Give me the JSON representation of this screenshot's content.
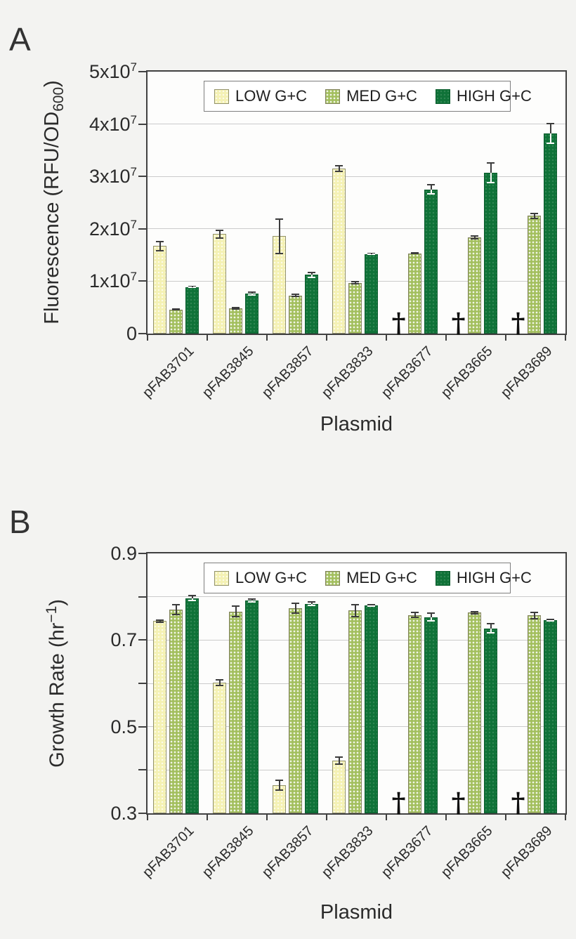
{
  "panels": [
    {
      "panel_label": "A"
    },
    {
      "panel_label": "B"
    }
  ],
  "legend": {
    "items": [
      {
        "key": "low",
        "label": "LOW G+C"
      },
      {
        "key": "med",
        "label": "MED G+C"
      },
      {
        "key": "high",
        "label": "HIGH G+C"
      }
    ]
  },
  "colors": {
    "low_fill": "#f4f1b4",
    "low_border": "#92926e",
    "med_fill": "#a3bf5e",
    "med_border": "#82825f",
    "high_fill": "#0f7238",
    "high_border": "#0b5c2d",
    "error_bar": "#3c3c3c",
    "error_bar_on_dark": "#ffffff",
    "axis": "#414141",
    "gridline": "#cbcbcb",
    "background": "#f3f3f1",
    "plot_background": "#fdfdfc",
    "text": "#2b2b2b"
  },
  "chart_data": [
    {
      "type": "bar",
      "panel": "A",
      "ylabel": "Fluorescence (RFU/OD600)",
      "ylabel_parts": [
        {
          "t": "Fluorescence (RFU/OD"
        },
        {
          "t": "600",
          "sub": true
        },
        {
          "t": ")"
        }
      ],
      "xlabel": "Plasmid",
      "ylim": [
        0,
        50000000
      ],
      "grid": "horizontal",
      "legend_position": "top-inside",
      "missing_symbol": "†",
      "categories": [
        "pFAB3701",
        "pFAB3845",
        "pFAB3857",
        "pFAB3833",
        "pFAB3677",
        "pFAB3665",
        "pFAB3689"
      ],
      "series": [
        {
          "name": "LOW G+C",
          "key": "low",
          "values": [
            16700000,
            19000000,
            18600000,
            31500000,
            null,
            null,
            null
          ],
          "errors": [
            1000000,
            900000,
            3400000,
            700000,
            null,
            null,
            null
          ]
        },
        {
          "name": "MED G+C",
          "key": "med",
          "values": [
            4600000,
            4800000,
            7300000,
            9700000,
            15300000,
            18400000,
            22500000
          ],
          "errors": [
            200000,
            300000,
            300000,
            300000,
            200000,
            400000,
            600000
          ]
        },
        {
          "name": "HIGH G+C",
          "key": "high",
          "values": [
            8900000,
            7700000,
            11200000,
            15200000,
            27500000,
            30700000,
            38200000
          ],
          "errors": [
            200000,
            400000,
            600000,
            200000,
            1000000,
            2000000,
            2000000
          ]
        }
      ],
      "yticks": [
        {
          "v": 0,
          "label": "0"
        },
        {
          "v": 10000000,
          "label": "1x10",
          "sup": "7"
        },
        {
          "v": 20000000,
          "label": "2x10",
          "sup": "7"
        },
        {
          "v": 30000000,
          "label": "3x10",
          "sup": "7"
        },
        {
          "v": 40000000,
          "label": "4x10",
          "sup": "7"
        },
        {
          "v": 50000000,
          "label": "5x10",
          "sup": "7"
        }
      ],
      "gridlines": [
        10000000,
        20000000,
        30000000,
        40000000
      ]
    },
    {
      "type": "bar",
      "panel": "B",
      "ylabel": "Growth Rate (hr-1)",
      "ylabel_parts": [
        {
          "t": "Growth Rate (hr"
        },
        {
          "t": "−1",
          "sup": true
        },
        {
          "t": ")"
        }
      ],
      "xlabel": "Plasmid",
      "ylim": [
        0.3,
        0.9
      ],
      "grid": "horizontal",
      "legend_position": "top-inside",
      "missing_symbol": "†",
      "categories": [
        "pFAB3701",
        "pFAB3845",
        "pFAB3857",
        "pFAB3833",
        "pFAB3677",
        "pFAB3665",
        "pFAB3689"
      ],
      "series": [
        {
          "name": "LOW G+C",
          "key": "low",
          "values": [
            0.744,
            0.601,
            0.365,
            0.422,
            null,
            null,
            null
          ],
          "errors": [
            0.004,
            0.008,
            0.013,
            0.01,
            null,
            null,
            null
          ]
        },
        {
          "name": "MED G+C",
          "key": "med",
          "values": [
            0.771,
            0.766,
            0.773,
            0.768,
            0.758,
            0.763,
            0.757
          ],
          "errors": [
            0.013,
            0.014,
            0.013,
            0.016,
            0.007,
            0.004,
            0.009
          ]
        },
        {
          "name": "HIGH G+C",
          "key": "high",
          "values": [
            0.797,
            0.791,
            0.784,
            0.78,
            0.753,
            0.727,
            0.746
          ],
          "errors": [
            0.008,
            0.005,
            0.005,
            0.004,
            0.011,
            0.012,
            0.004
          ]
        }
      ],
      "yticks": [
        {
          "v": 0.3,
          "label": "0.3"
        },
        {
          "v": 0.4
        },
        {
          "v": 0.5,
          "label": "0.5"
        },
        {
          "v": 0.6
        },
        {
          "v": 0.7,
          "label": "0.7"
        },
        {
          "v": 0.8
        },
        {
          "v": 0.9,
          "label": "0.9"
        }
      ],
      "gridlines": [
        0.4,
        0.5,
        0.6,
        0.7,
        0.8
      ]
    }
  ]
}
